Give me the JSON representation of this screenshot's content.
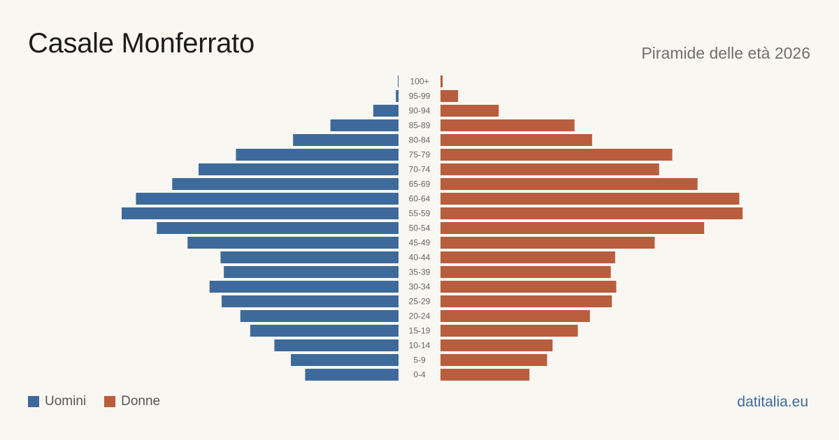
{
  "header": {
    "title": "Casale Monferrato",
    "subtitle": "Piramide delle età 2026"
  },
  "legend": {
    "men_label": "Uomini",
    "women_label": "Donne"
  },
  "footer": {
    "source": "datitalia.eu"
  },
  "colors": {
    "men": "#3d6a9a",
    "women": "#b85e3e",
    "age_label": "#666666"
  },
  "chart_data": {
    "type": "bar",
    "orientation": "horizontal-mirrored",
    "categories": [
      "100+",
      "95-99",
      "90-94",
      "85-89",
      "80-84",
      "75-79",
      "70-74",
      "65-69",
      "60-64",
      "55-59",
      "50-54",
      "45-49",
      "40-44",
      "35-39",
      "30-34",
      "25-29",
      "20-24",
      "15-19",
      "10-14",
      "5-9",
      "0-4"
    ],
    "series": [
      {
        "name": "Uomini",
        "side": "left",
        "values": [
          3,
          12,
          115,
          310,
          480,
          740,
          910,
          1030,
          1195,
          1260,
          1100,
          960,
          810,
          795,
          860,
          805,
          720,
          675,
          565,
          490,
          425
        ]
      },
      {
        "name": "Donne",
        "side": "right",
        "values": [
          10,
          80,
          265,
          610,
          690,
          1055,
          995,
          1170,
          1360,
          1375,
          1200,
          975,
          795,
          775,
          800,
          780,
          680,
          625,
          510,
          485,
          405
        ]
      }
    ],
    "xlim": [
      0,
      1400
    ],
    "grid": false,
    "legend_position": "bottom-left"
  }
}
